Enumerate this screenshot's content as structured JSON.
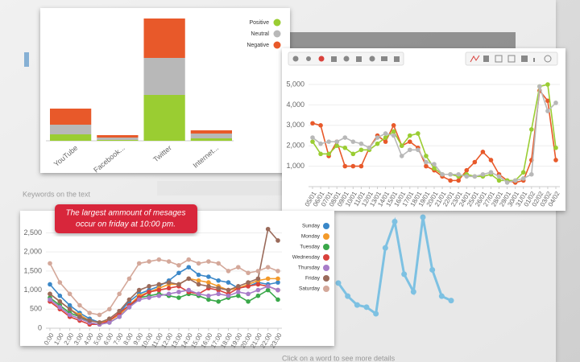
{
  "background": {
    "texts": [
      "Keywords on the text",
      "Click on a word to see more details"
    ]
  },
  "chart_data": [
    {
      "type": "bar",
      "stacked": true,
      "categories": [
        "YouTube",
        "Facebook...",
        "Twitter",
        "Internet..."
      ],
      "series": [
        {
          "name": "Positive",
          "color": "#9acd32",
          "values": [
            8,
            1,
            57,
            3
          ]
        },
        {
          "name": "Neutral",
          "color": "#b8b8b8",
          "values": [
            12,
            3,
            46,
            6
          ]
        },
        {
          "name": "Negative",
          "color": "#e8592a",
          "values": [
            20,
            3,
            49,
            4
          ]
        }
      ],
      "legend": "top-right"
    },
    {
      "type": "line",
      "categories": [
        "05/01",
        "06/01",
        "07/01",
        "08/01",
        "09/01",
        "10/01",
        "11/01",
        "12/01",
        "13/01",
        "14/01",
        "15/01",
        "16/01",
        "17/01",
        "18/01",
        "19/01",
        "20/01",
        "21/01",
        "22/01",
        "23/01",
        "24/01",
        "25/01",
        "26/01",
        "27/01",
        "28/01",
        "29/01",
        "30/01",
        "31/01",
        "01/02",
        "02/02",
        "03/02",
        "04/02"
      ],
      "series": [
        {
          "color": "#e8592a",
          "values": [
            3100,
            3000,
            1500,
            2200,
            1000,
            1000,
            1000,
            1900,
            2500,
            2200,
            3000,
            2000,
            2200,
            1900,
            1000,
            800,
            500,
            300,
            300,
            800,
            1200,
            1700,
            1300,
            600,
            300,
            200,
            300,
            1300,
            4700,
            4200,
            1300
          ]
        },
        {
          "color": "#9acd32",
          "values": [
            2200,
            1600,
            1600,
            2000,
            1900,
            1600,
            1800,
            1800,
            2100,
            2400,
            2700,
            2000,
            2500,
            2600,
            1500,
            900,
            600,
            600,
            500,
            600,
            500,
            500,
            600,
            300,
            300,
            300,
            700,
            2800,
            4900,
            5000,
            1900
          ]
        },
        {
          "color": "#b8b8b8",
          "values": [
            2400,
            2100,
            2200,
            2200,
            2400,
            2200,
            2100,
            1900,
            2400,
            2600,
            2500,
            1500,
            1800,
            1800,
            1200,
            1100,
            600,
            600,
            600,
            500,
            500,
            600,
            700,
            500,
            200,
            300,
            400,
            600,
            4900,
            3700,
            4100
          ]
        }
      ],
      "ylim": [
        0,
        5000
      ],
      "yticks": [
        {
          "value": 1000,
          "label": "1,000"
        },
        {
          "value": 2000,
          "label": "2,000"
        },
        {
          "value": 3000,
          "label": "3,000"
        },
        {
          "value": 4000,
          "label": "4,000"
        },
        {
          "value": 5000,
          "label": "5,000"
        }
      ]
    },
    {
      "type": "line",
      "annotation": [
        "The largest ammount of mesages",
        "occur on friday at 10:00 pm."
      ],
      "categories": [
        "0:00",
        "1:00",
        "2:00",
        "3:00",
        "4:00",
        "5:00",
        "6:00",
        "7:00",
        "8:00",
        "9:00",
        "10:00",
        "11:00",
        "12:00",
        "13:00",
        "14:00",
        "15:00",
        "16:00",
        "17:00",
        "18:00",
        "19:00",
        "20:00",
        "21:00",
        "22:00",
        "23:00"
      ],
      "series": [
        {
          "name": "Sunday",
          "color": "#3a87c8",
          "values": [
            1150,
            850,
            600,
            400,
            250,
            150,
            200,
            400,
            700,
            900,
            1000,
            1100,
            1250,
            1450,
            1600,
            1400,
            1350,
            1250,
            1200,
            1050,
            1100,
            1200,
            1150,
            1200
          ]
        },
        {
          "name": "Monday",
          "color": "#f39a2a",
          "values": [
            900,
            700,
            500,
            350,
            200,
            150,
            200,
            350,
            600,
            850,
            950,
            1050,
            1150,
            1150,
            1300,
            1250,
            1200,
            1100,
            1000,
            1050,
            1150,
            1250,
            1300,
            1300
          ]
        },
        {
          "name": "Tuesday",
          "color": "#3aa84a",
          "values": [
            800,
            600,
            400,
            300,
            150,
            100,
            150,
            300,
            550,
            800,
            850,
            900,
            850,
            800,
            900,
            850,
            750,
            700,
            800,
            850,
            700,
            850,
            1000,
            750
          ]
        },
        {
          "name": "Wednesday",
          "color": "#d9413c",
          "values": [
            700,
            500,
            300,
            200,
            100,
            100,
            200,
            400,
            600,
            800,
            950,
            1000,
            1050,
            1100,
            950,
            900,
            1050,
            1000,
            900,
            1050,
            1100,
            1150,
            1100,
            1000
          ]
        },
        {
          "name": "Thursday",
          "color": "#a87cc8",
          "values": [
            750,
            550,
            350,
            250,
            150,
            100,
            150,
            300,
            550,
            750,
            800,
            850,
            900,
            950,
            1000,
            900,
            850,
            900,
            850,
            950,
            900,
            1000,
            1100,
            1000
          ]
        },
        {
          "name": "Friday",
          "color": "#9a6a5a",
          "values": [
            900,
            700,
            500,
            300,
            200,
            150,
            250,
            450,
            750,
            1000,
            1100,
            1150,
            1200,
            1150,
            1300,
            1150,
            1100,
            1050,
            1000,
            1100,
            1200,
            1300,
            2600,
            2300
          ]
        },
        {
          "name": "Saturday",
          "color": "#d4a89a",
          "values": [
            1700,
            1200,
            900,
            600,
            400,
            350,
            500,
            900,
            1300,
            1700,
            1750,
            1800,
            1750,
            1650,
            1800,
            1700,
            1750,
            1700,
            1500,
            1600,
            1450,
            1500,
            1600,
            1500
          ]
        }
      ],
      "ylim": [
        0,
        2700
      ],
      "yticks": [
        0,
        500,
        {
          "value": 1000,
          "label": "1,000"
        },
        {
          "value": 1500,
          "label": "1,500"
        },
        {
          "value": 2000,
          "label": "2,000"
        },
        {
          "value": 2500,
          "label": "2,500"
        }
      ],
      "legend": "right"
    },
    {
      "type": "line",
      "series": [
        {
          "color": "#5ab4e0",
          "values": [
            1400,
            1100,
            900,
            850,
            700,
            2200,
            2800,
            1600,
            1200,
            2900,
            1700,
            1100,
            1000
          ]
        }
      ]
    }
  ]
}
